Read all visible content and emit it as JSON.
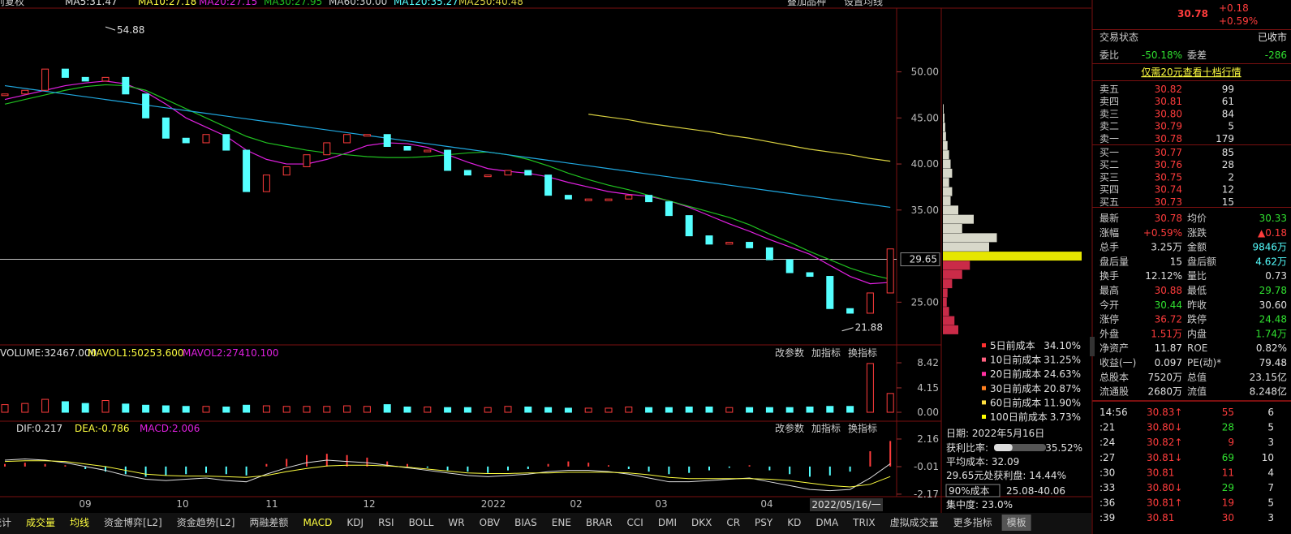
{
  "header": {
    "ma_legend": [
      "前复权",
      "MA5:31.47",
      "MA10:27.18",
      "MA20:27.15",
      "MA30:27.95",
      "MA60:30.00",
      "MA120:35.27",
      "MA250:40.48"
    ],
    "buttons": [
      "叠加品种",
      "设置均线"
    ]
  },
  "price_chart": {
    "type": "candlestick",
    "ylim": [
      20.8,
      56.92
    ],
    "yticks": [
      {
        "value": 25,
        "label": "25.00"
      },
      {
        "value": 35,
        "label": "35.00"
      },
      {
        "value": 40,
        "label": "40.00"
      },
      {
        "value": 45,
        "label": "45.00"
      },
      {
        "value": 50,
        "label": "50.00"
      }
    ],
    "current": 29.65,
    "high": 54.88,
    "low": 21.88,
    "closes": [
      47.6,
      48,
      50.3,
      49.4,
      49,
      49.4,
      47.6,
      45,
      42.8,
      42.3,
      43.2,
      41.5,
      37,
      38.8,
      39.7,
      41,
      42.3,
      43.2,
      43.2,
      41.9,
      41.5,
      41.5,
      39.3,
      38.8,
      38.8,
      39.3,
      38.8,
      36.6,
      36.2,
      36.2,
      36.2,
      36.6,
      35.9,
      34.4,
      32.2,
      31.3,
      31.5,
      30.9,
      29.6,
      28.2,
      27.8,
      24.3,
      23.8,
      26,
      30.78
    ],
    "ma": [
      {
        "color": "#e020e0",
        "values": [
          47,
          47.5,
          48,
          48.5,
          48.8,
          49,
          48.7,
          47.8,
          46.5,
          45,
          44,
          43,
          41.5,
          40.5,
          40,
          40,
          40.5,
          41.2,
          42,
          42.3,
          42.2,
          41.8,
          41,
          40.2,
          39.5,
          39.2,
          39,
          38.6,
          38,
          37.5,
          37,
          36.7,
          36.5,
          36,
          35.3,
          34.4,
          33.5,
          32.7,
          31.8,
          31,
          30.2,
          29,
          27.8,
          27,
          27.15
        ]
      },
      {
        "color": "#20c020",
        "values": [
          46.5,
          47,
          47.5,
          48,
          48.4,
          48.6,
          48.5,
          48,
          47,
          46,
          45,
          44,
          43,
          42.3,
          41.9,
          41.5,
          41.2,
          41,
          40.8,
          40.7,
          40.7,
          40.8,
          41,
          41.2,
          41.3,
          41,
          40.5,
          39.8,
          39,
          38.3,
          37.7,
          37.2,
          36.6,
          36,
          35.4,
          34.8,
          34.2,
          33.4,
          32.4,
          31.5,
          30.5,
          29.6,
          28.7,
          28,
          27.5
        ]
      },
      {
        "color": "#20a8e0",
        "values": [
          48.5,
          48.2,
          47.9,
          47.6,
          47.3,
          47.0,
          46.7,
          46.4,
          46.1,
          45.8,
          45.5,
          45.2,
          44.9,
          44.6,
          44.3,
          44.0,
          43.7,
          43.4,
          43.1,
          42.8,
          42.5,
          42.2,
          41.9,
          41.6,
          41.3,
          41.0,
          40.7,
          40.4,
          40.1,
          39.8,
          39.5,
          39.2,
          38.9,
          38.6,
          38.3,
          38.0,
          37.7,
          37.4,
          37.1,
          36.8,
          36.5,
          36.2,
          35.9,
          35.6,
          35.3
        ]
      },
      {
        "color": "#d8d040",
        "values": [
          null,
          null,
          null,
          null,
          null,
          null,
          null,
          null,
          null,
          null,
          null,
          null,
          null,
          null,
          null,
          null,
          null,
          null,
          null,
          null,
          null,
          null,
          null,
          null,
          null,
          null,
          null,
          null,
          null,
          45.4,
          45.1,
          44.8,
          44.4,
          44.1,
          43.8,
          43.5,
          43.1,
          42.8,
          42.4,
          42.0,
          41.6,
          41.3,
          41.0,
          40.6,
          40.3
        ]
      }
    ],
    "x_labels": [
      "09",
      "10",
      "11",
      "12",
      "2022",
      "02",
      "03",
      "04"
    ],
    "date_box": "2022/05/16/一"
  },
  "volume": {
    "legend": [
      "VOLUME:32467.000",
      "MAVOL1:50253.600",
      "MAVOL2:27410.100"
    ],
    "buttons": [
      "改参数",
      "加指标",
      "换指标"
    ],
    "ylim": [
      0,
      9.39
    ],
    "yticks": [
      {
        "value": 0,
        "label": "0.00"
      },
      4.15,
      8.42
    ],
    "values": [
      1.3,
      1.5,
      2.2,
      1.8,
      1.5,
      2.0,
      1.4,
      1.2,
      1.1,
      1.0,
      1.0,
      0.9,
      1.2,
      1.1,
      1.0,
      1.0,
      1.0,
      1.1,
      1.0,
      1.3,
      0.9,
      0.9,
      0.8,
      0.8,
      0.8,
      1.0,
      0.9,
      0.8,
      0.7,
      0.7,
      0.7,
      0.9,
      0.8,
      0.8,
      0.9,
      0.9,
      0.8,
      0.8,
      0.8,
      0.8,
      0.9,
      1.0,
      1.0,
      8.3,
      3.2
    ]
  },
  "macd": {
    "legend": [
      "DIF:0.217",
      "DEA:-0.786",
      "MACD:2.006"
    ],
    "buttons": [
      "改参数",
      "加指标",
      "换指标"
    ],
    "ylim": [
      -2.24,
      2.54
    ],
    "yticks": [
      -2.17,
      -0.01,
      2.16
    ],
    "hist": [
      0.2,
      0.3,
      0.2,
      0.1,
      -0.2,
      -0.4,
      -0.6,
      -0.8,
      -0.7,
      -0.6,
      -0.5,
      -0.6,
      -0.7,
      0.2,
      0.6,
      0.9,
      1.0,
      0.9,
      0.7,
      0.4,
      0.2,
      -0.1,
      -0.3,
      -0.4,
      -0.5,
      -0.3,
      -0.2,
      0.2,
      0.4,
      0.3,
      0.1,
      -0.2,
      -0.4,
      -0.6,
      -0.5,
      -0.3,
      -0.1,
      0.1,
      -0.3,
      -0.6,
      -0.8,
      -0.7,
      -0.4,
      1.2,
      2.006
    ],
    "dif": [
      0.5,
      0.6,
      0.5,
      0.3,
      0,
      -0.3,
      -0.7,
      -1.0,
      -1.1,
      -1.0,
      -0.9,
      -1.1,
      -1.2,
      -0.6,
      -0.1,
      0.3,
      0.5,
      0.4,
      0.3,
      0.1,
      -0.1,
      -0.3,
      -0.5,
      -0.7,
      -0.8,
      -0.7,
      -0.6,
      -0.4,
      -0.3,
      -0.3,
      -0.4,
      -0.6,
      -0.9,
      -1.2,
      -1.2,
      -1.1,
      -1.0,
      -0.9,
      -1.2,
      -1.5,
      -1.8,
      -1.9,
      -1.8,
      -0.9,
      0.217
    ],
    "dea": [
      0.4,
      0.45,
      0.45,
      0.4,
      0.2,
      0,
      -0.3,
      -0.6,
      -0.7,
      -0.75,
      -0.75,
      -0.8,
      -0.85,
      -0.7,
      -0.4,
      -0.15,
      0.05,
      0.1,
      0.1,
      0.05,
      -0.05,
      -0.2,
      -0.35,
      -0.5,
      -0.55,
      -0.55,
      -0.5,
      -0.5,
      -0.45,
      -0.45,
      -0.45,
      -0.5,
      -0.65,
      -0.85,
      -0.95,
      -0.95,
      -0.95,
      -0.95,
      -1.0,
      -1.1,
      -1.3,
      -1.5,
      -1.6,
      -1.4,
      -0.786
    ]
  },
  "chips": {
    "prices": [
      22,
      23,
      24,
      25,
      26,
      27,
      28,
      29,
      30,
      31,
      32,
      33,
      34,
      35,
      36,
      37,
      38,
      39,
      40,
      41,
      42,
      43,
      44,
      45,
      46
    ],
    "amounts": [
      20,
      15,
      8,
      5,
      6,
      12,
      25,
      35,
      180,
      60,
      70,
      25,
      40,
      20,
      10,
      12,
      8,
      12,
      10,
      8,
      6,
      4,
      3,
      2,
      1
    ]
  },
  "cost": {
    "legend": [
      {
        "label": "5日前成本",
        "value": "34.10%",
        "color": "#ff3030"
      },
      {
        "label": "10日前成本",
        "value": "31.25%",
        "color": "#ff6080"
      },
      {
        "label": "20日前成本",
        "value": "24.63%",
        "color": "#ff30a0"
      },
      {
        "label": "30日前成本",
        "value": "20.87%",
        "color": "#ff8020"
      },
      {
        "label": "60日前成本",
        "value": "11.90%",
        "color": "#ffe040"
      },
      {
        "label": "100日前成本",
        "value": "3.73%",
        "color": "#ffff00"
      }
    ],
    "date": "日期: 2022年5月16日",
    "profit_label": "获利比率:",
    "profit_value": "35.52%",
    "profit_ratio": 35.52,
    "avg_cost": "平均成本: 32.09",
    "at_price": "29.65元处获利盘: 14.44%",
    "range_select": "90%成本",
    "range": "25.08-40.06",
    "concentration": "集中度: 23.0%"
  },
  "tabs": [
    "统计",
    "成交量",
    "均线",
    "资金博弈[L2]",
    "资金趋势[L2]",
    "两融差额",
    "MACD",
    "KDJ",
    "RSI",
    "BOLL",
    "WR",
    "OBV",
    "BIAS",
    "ENE",
    "BRAR",
    "CCI",
    "DMI",
    "DKX",
    "CR",
    "PSY",
    "KD",
    "DMA",
    "TRIX",
    "虚拟成交量",
    "更多指标",
    "模板"
  ],
  "quote_panel": {
    "price": "30.78",
    "change": "+0.18",
    "change_pct": "+0.59%",
    "status": [
      "交易状态",
      "已收市"
    ],
    "ratio": [
      "委比",
      "-50.18%",
      "委差",
      "-286"
    ],
    "promo": "仅需20元查看十档行情",
    "order_book": [
      [
        "卖五",
        "30.82",
        "99"
      ],
      [
        "卖四",
        "30.81",
        "61"
      ],
      [
        "卖三",
        "30.80",
        "84"
      ],
      [
        "卖二",
        "30.79",
        "5"
      ],
      [
        "卖一",
        "30.78",
        "179"
      ],
      [
        "买一",
        "30.77",
        "85"
      ],
      [
        "买二",
        "30.76",
        "28"
      ],
      [
        "买三",
        "30.75",
        "2"
      ],
      [
        "买四",
        "30.74",
        "12"
      ],
      [
        "买五",
        "30.73",
        "15"
      ]
    ],
    "stats": [
      [
        "最新",
        "30.78",
        "均价",
        "30.33"
      ],
      [
        "涨幅",
        "+0.59%",
        "涨跌",
        "▲0.18"
      ],
      [
        "总手",
        "3.25万",
        "金额",
        "9846万"
      ],
      [
        "盘后量",
        "15",
        "盘后额",
        "4.62万"
      ],
      [
        "换手",
        "12.12%",
        "量比",
        "0.73"
      ],
      [
        "最高",
        "30.88",
        "最低",
        "29.78"
      ],
      [
        "今开",
        "30.44",
        "昨收",
        "30.60"
      ],
      [
        "涨停",
        "36.72",
        "跌停",
        "24.48"
      ],
      [
        "外盘",
        "1.51万",
        "内盘",
        "1.74万"
      ],
      [
        "净资产",
        "11.87",
        "ROE",
        "0.82%"
      ],
      [
        "收益(一)",
        "0.097",
        "PE(动)*",
        "79.48"
      ],
      [
        "总股本",
        "7520万",
        "总值",
        "23.15亿"
      ],
      [
        "流通股",
        "2680万",
        "流值",
        "8.248亿"
      ]
    ],
    "ticks": [
      [
        "14:56",
        "30.83↑",
        "55",
        "6"
      ],
      [
        ":21",
        "30.80↓",
        "28",
        "5"
      ],
      [
        ":24",
        "30.82↑",
        "9",
        "3"
      ],
      [
        ":27",
        "30.81↓",
        "69",
        "10"
      ],
      [
        ":30",
        "30.81",
        "11",
        "4"
      ],
      [
        ":33",
        "30.80↓",
        "29",
        "7"
      ],
      [
        ":36",
        "30.81↑",
        "19",
        "5"
      ],
      [
        ":39",
        "30.81",
        "30",
        "3"
      ]
    ]
  }
}
